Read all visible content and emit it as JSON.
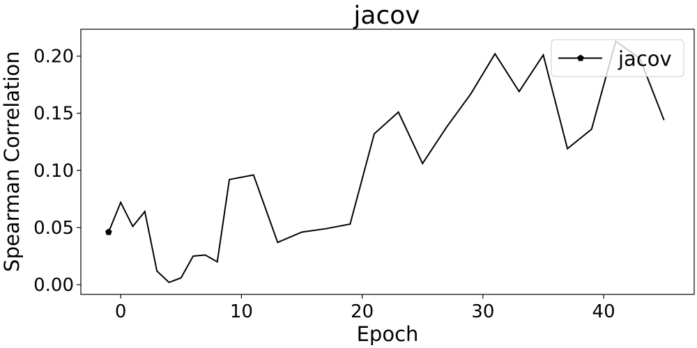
{
  "chart_data": {
    "type": "line",
    "title": "jacov",
    "xlabel": "Epoch",
    "ylabel": "Spearman Correlation",
    "xlim": [
      -3.3,
      47.5
    ],
    "ylim": [
      -0.0085,
      0.2235
    ],
    "xticks": [
      0,
      10,
      20,
      30,
      40
    ],
    "xtick_labels": [
      "0",
      "10",
      "20",
      "30",
      "40"
    ],
    "yticks": [
      0.0,
      0.05,
      0.1,
      0.15,
      0.2
    ],
    "ytick_labels": [
      "0.00",
      "0.05",
      "0.10",
      "0.15",
      "0.20"
    ],
    "grid": false,
    "legend_position": "top-right",
    "series": [
      {
        "name": "jacov",
        "color": "#000000",
        "marker": "pentagon",
        "x": [
          -1,
          0,
          1,
          2,
          3,
          4,
          5,
          6,
          7,
          8,
          9,
          11,
          13,
          15,
          17,
          19,
          21,
          23,
          25,
          27,
          29,
          31,
          33,
          35,
          37,
          39,
          41,
          43,
          45
        ],
        "y": [
          0.046,
          0.072,
          0.051,
          0.064,
          0.012,
          0.002,
          0.006,
          0.025,
          0.026,
          0.02,
          0.092,
          0.096,
          0.037,
          0.046,
          0.049,
          0.053,
          0.132,
          0.151,
          0.106,
          0.138,
          0.167,
          0.202,
          0.169,
          0.201,
          0.119,
          0.136,
          0.213,
          0.198,
          0.144
        ],
        "marker_indices": [
          0
        ]
      }
    ]
  }
}
